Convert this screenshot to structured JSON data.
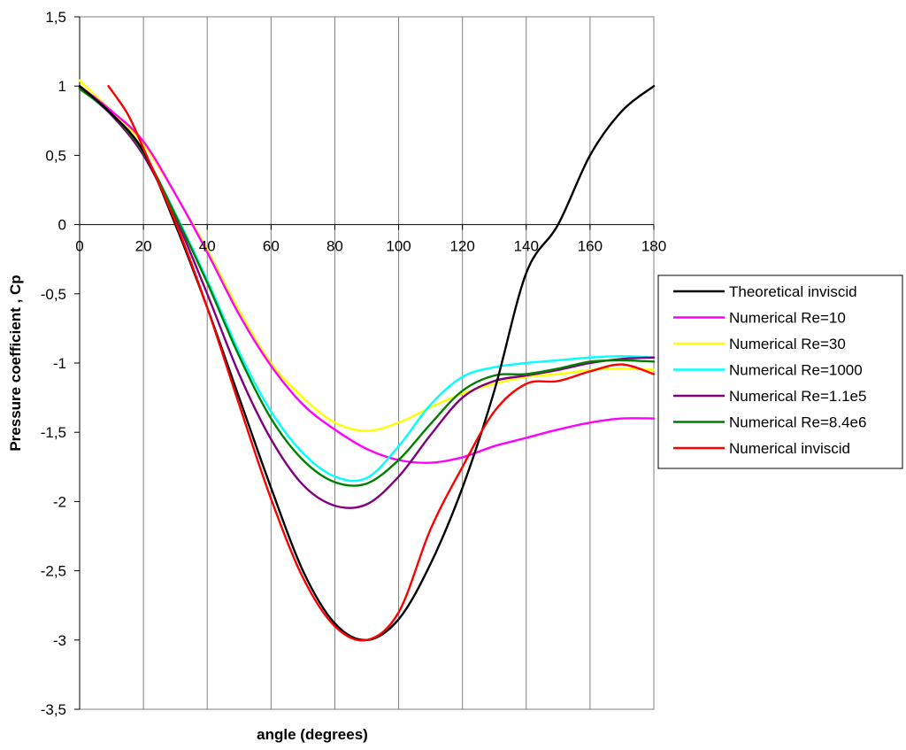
{
  "chart_data": {
    "type": "line",
    "title": "",
    "xlabel": "angle (degrees)",
    "ylabel": "Pressure coefficient , Cp",
    "xlim": [
      0,
      180
    ],
    "ylim": [
      -3.5,
      1.5
    ],
    "xticks": [
      0,
      20,
      40,
      60,
      80,
      100,
      120,
      140,
      160,
      180
    ],
    "xtick_labels": [
      "0",
      "20",
      "40",
      "60",
      "80",
      "100",
      "120",
      "140",
      "160",
      "180"
    ],
    "yticks": [
      1.5,
      1,
      0.5,
      0,
      -0.5,
      -1,
      -1.5,
      -2,
      -2.5,
      -3,
      -3.5
    ],
    "ytick_labels": [
      "1,5",
      "1",
      "0,5",
      "0",
      "-0,5",
      "-1",
      "-1,5",
      "-2",
      "-2,5",
      "-3",
      "-3,5"
    ],
    "grid": "vertical",
    "legend_position": "right",
    "series": [
      {
        "name": "Theoretical inviscid",
        "color": "#000000",
        "points": [
          [
            0,
            1
          ],
          [
            10,
            0.8
          ],
          [
            20,
            0.53
          ],
          [
            30,
            0
          ],
          [
            40,
            -0.6
          ],
          [
            50,
            -1.25
          ],
          [
            60,
            -1.9
          ],
          [
            70,
            -2.5
          ],
          [
            80,
            -2.88
          ],
          [
            90,
            -3
          ],
          [
            100,
            -2.85
          ],
          [
            110,
            -2.45
          ],
          [
            120,
            -1.9
          ],
          [
            130,
            -1.2
          ],
          [
            140,
            -0.35
          ],
          [
            150,
            0
          ],
          [
            160,
            0.5
          ],
          [
            170,
            0.82
          ],
          [
            180,
            1
          ]
        ]
      },
      {
        "name": "Numerical Re=10",
        "color": "#FF00FF",
        "points": [
          [
            0,
            1
          ],
          [
            10,
            0.82
          ],
          [
            20,
            0.6
          ],
          [
            30,
            0.22
          ],
          [
            40,
            -0.2
          ],
          [
            50,
            -0.65
          ],
          [
            60,
            -1.02
          ],
          [
            70,
            -1.3
          ],
          [
            80,
            -1.48
          ],
          [
            90,
            -1.62
          ],
          [
            100,
            -1.7
          ],
          [
            110,
            -1.72
          ],
          [
            120,
            -1.68
          ],
          [
            130,
            -1.6
          ],
          [
            140,
            -1.54
          ],
          [
            150,
            -1.48
          ],
          [
            160,
            -1.43
          ],
          [
            170,
            -1.4
          ],
          [
            180,
            -1.4
          ]
        ]
      },
      {
        "name": "Numerical Re=30",
        "color": "#FFFF00",
        "points": [
          [
            0,
            1.04
          ],
          [
            10,
            0.82
          ],
          [
            20,
            0.58
          ],
          [
            30,
            0.22
          ],
          [
            40,
            -0.18
          ],
          [
            50,
            -0.62
          ],
          [
            60,
            -1
          ],
          [
            70,
            -1.25
          ],
          [
            80,
            -1.43
          ],
          [
            90,
            -1.49
          ],
          [
            100,
            -1.43
          ],
          [
            110,
            -1.32
          ],
          [
            120,
            -1.22
          ],
          [
            130,
            -1.15
          ],
          [
            140,
            -1.1
          ],
          [
            150,
            -1.08
          ],
          [
            160,
            -1.05
          ],
          [
            170,
            -1.04
          ],
          [
            180,
            -1.05
          ]
        ]
      },
      {
        "name": "Numerical Re=1000",
        "color": "#00FFFF",
        "points": [
          [
            0,
            0.98
          ],
          [
            10,
            0.8
          ],
          [
            20,
            0.52
          ],
          [
            30,
            0.08
          ],
          [
            40,
            -0.4
          ],
          [
            50,
            -0.92
          ],
          [
            60,
            -1.35
          ],
          [
            70,
            -1.65
          ],
          [
            80,
            -1.82
          ],
          [
            90,
            -1.83
          ],
          [
            100,
            -1.6
          ],
          [
            110,
            -1.3
          ],
          [
            120,
            -1.1
          ],
          [
            130,
            -1.03
          ],
          [
            140,
            -1
          ],
          [
            150,
            -0.98
          ],
          [
            160,
            -0.96
          ],
          [
            170,
            -0.95
          ],
          [
            180,
            -0.96
          ]
        ]
      },
      {
        "name": "Numerical Re=1.1e5",
        "color": "#800080",
        "points": [
          [
            0,
            0.99
          ],
          [
            10,
            0.79
          ],
          [
            20,
            0.5
          ],
          [
            30,
            0.05
          ],
          [
            40,
            -0.5
          ],
          [
            50,
            -1.08
          ],
          [
            60,
            -1.55
          ],
          [
            70,
            -1.88
          ],
          [
            80,
            -2.03
          ],
          [
            90,
            -2.02
          ],
          [
            100,
            -1.82
          ],
          [
            110,
            -1.52
          ],
          [
            120,
            -1.25
          ],
          [
            130,
            -1.13
          ],
          [
            140,
            -1.09
          ],
          [
            150,
            -1.05
          ],
          [
            160,
            -1
          ],
          [
            170,
            -0.97
          ],
          [
            180,
            -0.96
          ]
        ]
      },
      {
        "name": "Numerical Re=8.4e6",
        "color": "#008000",
        "points": [
          [
            0,
            0.98
          ],
          [
            10,
            0.8
          ],
          [
            20,
            0.52
          ],
          [
            30,
            0.07
          ],
          [
            40,
            -0.42
          ],
          [
            50,
            -0.95
          ],
          [
            60,
            -1.4
          ],
          [
            70,
            -1.7
          ],
          [
            80,
            -1.86
          ],
          [
            90,
            -1.87
          ],
          [
            100,
            -1.7
          ],
          [
            110,
            -1.44
          ],
          [
            120,
            -1.2
          ],
          [
            130,
            -1.09
          ],
          [
            140,
            -1.08
          ],
          [
            150,
            -1.04
          ],
          [
            160,
            -0.99
          ],
          [
            170,
            -0.98
          ],
          [
            180,
            -0.99
          ]
        ]
      },
      {
        "name": "Numerical inviscid",
        "color": "#FF0000",
        "points": [
          [
            9,
            1
          ],
          [
            15,
            0.8
          ],
          [
            20,
            0.55
          ],
          [
            30,
            0.02
          ],
          [
            40,
            -0.6
          ],
          [
            50,
            -1.3
          ],
          [
            60,
            -1.98
          ],
          [
            70,
            -2.55
          ],
          [
            80,
            -2.9
          ],
          [
            90,
            -3
          ],
          [
            100,
            -2.8
          ],
          [
            110,
            -2.2
          ],
          [
            120,
            -1.75
          ],
          [
            130,
            -1.35
          ],
          [
            140,
            -1.15
          ],
          [
            150,
            -1.13
          ],
          [
            160,
            -1.06
          ],
          [
            170,
            -1.01
          ],
          [
            180,
            -1.08
          ]
        ]
      }
    ]
  }
}
